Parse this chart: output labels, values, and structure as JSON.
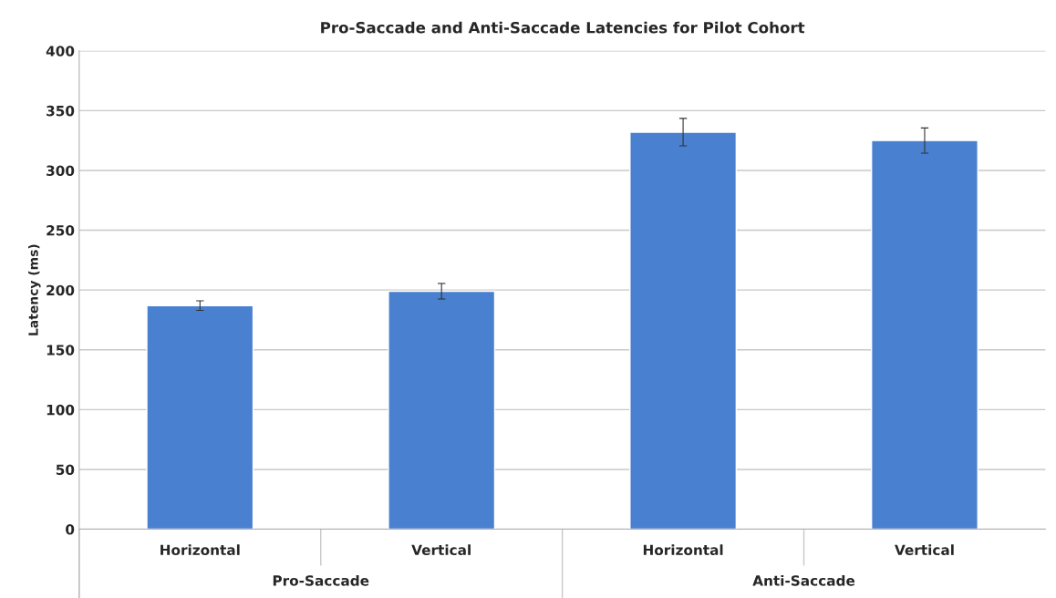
{
  "chart_data": {
    "type": "bar",
    "title": "Pro-Saccade and Anti-Saccade Latencies for Pilot Cohort",
    "ylabel": "Latency (ms)",
    "categories": [
      "Horizontal",
      "Vertical",
      "Horizontal",
      "Vertical"
    ],
    "values": [
      187,
      199,
      332,
      325
    ],
    "errors": [
      4,
      6.5,
      11.5,
      10.5
    ],
    "color": "#4a80d0",
    "ylim": [
      0,
      400
    ],
    "yticks": [
      0,
      50,
      100,
      150,
      200,
      250,
      300,
      350,
      400
    ],
    "grid": "y",
    "annotations": [
      "Pro-Saccade",
      "Anti-Saccade"
    ]
  }
}
